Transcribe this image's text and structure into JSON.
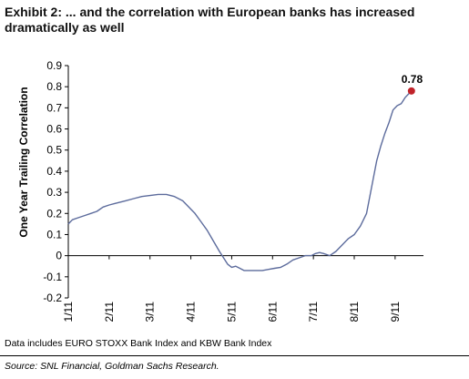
{
  "title": {
    "line1": "Exhibit 2: ... and the correlation with European banks has increased",
    "line2": "dramatically as well"
  },
  "note": "Data includes EURO STOXX Bank Index and KBW Bank Index",
  "source": "Source: SNL Financial, Goldman Sachs Research.",
  "colors": {
    "line": "#5c6b9c",
    "marker": "#c0232a",
    "axis": "#000000"
  },
  "chart_data": {
    "type": "line",
    "ylabel": "One Year Trailing Correlation",
    "xlabel": "",
    "ylim": [
      -0.2,
      0.9
    ],
    "yticks": [
      "0.9",
      "0.8",
      "0.7",
      "0.6",
      "0.5",
      "0.4",
      "0.3",
      "0.2",
      "0.1",
      "0",
      "-0.1",
      "-0.2"
    ],
    "xticks": [
      "1/11",
      "2/11",
      "3/11",
      "4/11",
      "5/11",
      "6/11",
      "7/11",
      "8/11",
      "9/11"
    ],
    "grid": false,
    "annotation": {
      "label": "0.78",
      "x": 9.4,
      "y": 0.78
    },
    "series": [
      {
        "x": [
          1.0,
          1.1,
          1.25,
          1.4,
          1.55,
          1.7,
          1.85,
          2.0,
          2.2,
          2.4,
          2.6,
          2.8,
          3.0,
          3.2,
          3.4,
          3.6,
          3.8,
          3.95,
          4.1,
          4.25,
          4.4,
          4.55,
          4.7,
          4.8,
          4.9,
          5.0,
          5.1,
          5.2,
          5.3,
          5.45,
          5.6,
          5.75,
          5.9,
          6.05,
          6.2,
          6.35,
          6.5,
          6.65,
          6.8,
          6.95,
          7.05,
          7.15,
          7.25,
          7.4,
          7.55,
          7.7,
          7.85,
          8.0,
          8.15,
          8.3,
          8.45,
          8.55,
          8.65,
          8.75,
          8.85,
          8.95,
          9.05,
          9.15,
          9.25,
          9.35,
          9.4
        ],
        "y": [
          0.15,
          0.17,
          0.18,
          0.19,
          0.2,
          0.21,
          0.23,
          0.24,
          0.25,
          0.26,
          0.27,
          0.28,
          0.285,
          0.29,
          0.29,
          0.28,
          0.26,
          0.23,
          0.2,
          0.16,
          0.12,
          0.07,
          0.02,
          -0.01,
          -0.04,
          -0.055,
          -0.05,
          -0.06,
          -0.07,
          -0.07,
          -0.07,
          -0.07,
          -0.065,
          -0.06,
          -0.055,
          -0.04,
          -0.02,
          -0.01,
          0.0,
          0.0,
          0.01,
          0.015,
          0.01,
          0.0,
          0.02,
          0.05,
          0.08,
          0.1,
          0.14,
          0.2,
          0.35,
          0.45,
          0.52,
          0.58,
          0.63,
          0.69,
          0.71,
          0.72,
          0.75,
          0.77,
          0.78
        ]
      }
    ]
  }
}
